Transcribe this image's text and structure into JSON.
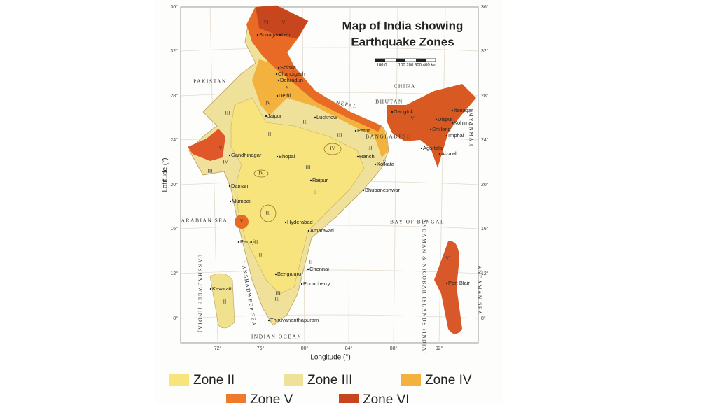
{
  "title": [
    "Map of India showing",
    "Earthquake Zones"
  ],
  "scale": [
    "100 0",
    "100 200 300 400 km"
  ],
  "axes": {
    "y_label": "Latitude (°)",
    "x_label": "Longitude (°)",
    "lat_ticks": [
      "36°",
      "32°",
      "28°",
      "24°",
      "20°",
      "16°",
      "12°",
      "8°"
    ],
    "lon_ticks": [
      "72°",
      "76°",
      "80°",
      "84°",
      "88°",
      "92°"
    ]
  },
  "regions": [
    "PAKISTAN",
    "CHINA",
    "NEPAL",
    "BHUTAN",
    "BANGLADESH",
    "MYANMAR",
    "ARABIAN SEA",
    "BAY OF BENGAL",
    "INDIAN OCEAN",
    "ANDAMAN SEA",
    "LAKSHADWEEP (INDIA)",
    "LAKSHADWEEP SEA",
    "ANDAMAN & NICOBAR ISLANDS (INDIA)"
  ],
  "cities": [
    "Srinagar",
    "Leh",
    "Shimla",
    "Chandigarh",
    "Dehradun",
    "Delhi",
    "Jaipur",
    "Lucknow",
    "Patna",
    "Gangtok",
    "Itanagar",
    "Dispur",
    "Kohima",
    "Shillong",
    "Imphal",
    "Agartala",
    "Aizawl",
    "Gandhinagar",
    "Bhopal",
    "Ranchi",
    "Kolkata",
    "Daman",
    "Raipur",
    "Mumbai",
    "Bhubaneshwar",
    "Hyderabad",
    "Amaravati",
    "Panaji",
    "Chennai",
    "Bengaluru",
    "Puducherry",
    "Kavaratti",
    "Thiruvananthapuram",
    "Port Blair"
  ],
  "zone_labels": [
    "VI",
    "V",
    "V",
    "IV",
    "III",
    "III",
    "III",
    "III",
    "II",
    "II",
    "II",
    "IV",
    "IV",
    "IV",
    "IV",
    "III",
    "V",
    "II",
    "II",
    "III",
    "VI",
    "VI",
    "III",
    "III",
    "II",
    "III",
    "V"
  ],
  "legend": [
    {
      "label": "Zone II",
      "color": "#f8e47c"
    },
    {
      "label": "Zone III",
      "color": "#efe09a"
    },
    {
      "label": "Zone IV",
      "color": "#f3b13e"
    },
    {
      "label": "Zone V",
      "color": "#ee7b2b"
    },
    {
      "label": "Zone VI",
      "color": "#c7461d"
    }
  ]
}
